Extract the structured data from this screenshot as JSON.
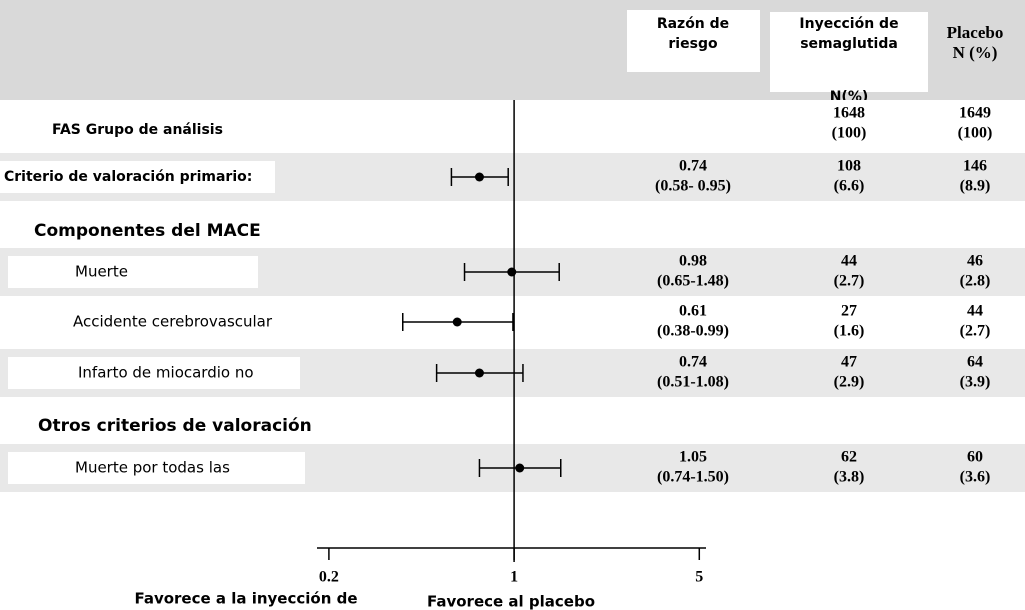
{
  "header": {
    "columns": [
      "Razón de riesgo",
      "Inyección de semaglutida",
      "N(%)",
      "Placebo N (%)"
    ]
  },
  "chart_data": {
    "type": "forest",
    "log_x": true,
    "xlim": [
      0.19,
      5.3
    ],
    "xticks": [
      0.2,
      1,
      5
    ],
    "reference_line": 1,
    "rows": [
      {
        "label": "FAS Grupo de análisis",
        "sema_n": "1648",
        "sema_pct": "(100)",
        "placebo_n": "1649",
        "placebo_pct": "(100)"
      },
      {
        "label": "Criterio de valoración primario:",
        "hr": 0.74,
        "lo": 0.58,
        "hi": 0.95,
        "ci_label": "(0.58- 0.95)",
        "sema_n": "108",
        "sema_pct": "(6.6)",
        "placebo_n": "146",
        "placebo_pct": "(8.9)"
      },
      {
        "label": "Componentes del MACE"
      },
      {
        "label": "Muerte",
        "hr": 0.98,
        "lo": 0.65,
        "hi": 1.48,
        "ci_label": "(0.65-1.48)",
        "sema_n": "44",
        "sema_pct": "(2.7)",
        "placebo_n": "46",
        "placebo_pct": "(2.8)"
      },
      {
        "label": "Accidente cerebrovascular",
        "hr": 0.61,
        "lo": 0.38,
        "hi": 0.99,
        "ci_label": "(0.38-0.99)",
        "sema_n": "27",
        "sema_pct": "(1.6)",
        "placebo_n": "44",
        "placebo_pct": "(2.7)"
      },
      {
        "label": "Infarto de miocardio no",
        "hr": 0.74,
        "lo": 0.51,
        "hi": 1.08,
        "ci_label": "(0.51-1.08)",
        "sema_n": "47",
        "sema_pct": "(2.9)",
        "placebo_n": "64",
        "placebo_pct": "(3.9)"
      },
      {
        "label": "Otros criterios de valoración"
      },
      {
        "label": "Muerte por todas las",
        "hr": 1.05,
        "lo": 0.74,
        "hi": 1.5,
        "ci_label": "(0.74-1.50)",
        "sema_n": "62",
        "sema_pct": "(3.8)",
        "placebo_n": "60",
        "placebo_pct": "(3.6)"
      }
    ]
  },
  "footer": {
    "left": "Favorece a la inyección de",
    "right": "Favorece al placebo"
  }
}
